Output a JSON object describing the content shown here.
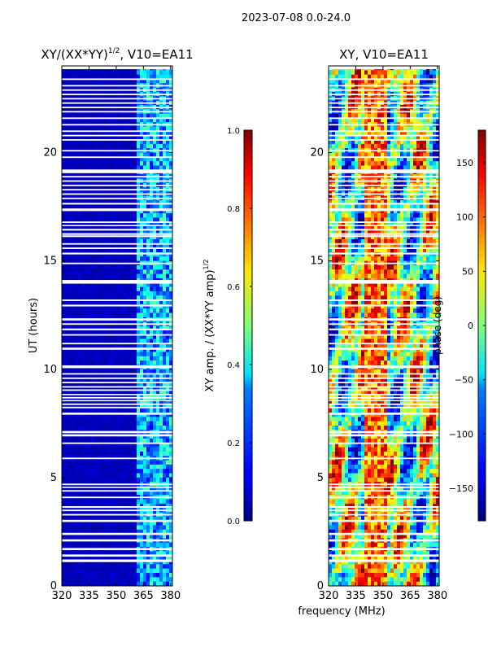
{
  "figure": {
    "suptitle": "2023-07-08 0.0-24.0",
    "shared_xlabel": "frequency (MHz)"
  },
  "chart_data": [
    {
      "type": "heatmap",
      "title_main": "XY/(XX*YY)",
      "title_sup": "1/2",
      "title_rest": ", V10=EA11",
      "xlabel": "",
      "ylabel": "UT (hours)",
      "xlim": [
        320,
        381
      ],
      "ylim": [
        0,
        24
      ],
      "xticks": [
        320,
        335,
        350,
        365,
        380
      ],
      "yticks": [
        0,
        5,
        10,
        15,
        20
      ],
      "colormap": "jet",
      "description": "XY amplitude normalised by sqrt(XX*YY amp); mostly near 0 below 362 MHz, values up to ~0.45 in the 362-381 MHz band",
      "colorbar": {
        "label_main": "XY amp. / (XX*YY amp)",
        "label_sup": "1/2",
        "range": [
          0.0,
          1.0
        ],
        "ticks": [
          "0.0",
          "0.2",
          "0.4",
          "0.6",
          "0.8",
          "1.0"
        ]
      }
    },
    {
      "type": "heatmap",
      "title": "XY, V10=EA11",
      "xlabel": "",
      "ylabel": "",
      "xlim": [
        320,
        381
      ],
      "ylim": [
        0,
        24
      ],
      "xticks": [
        320,
        335,
        350,
        365,
        380
      ],
      "yticks": [
        0,
        5,
        10,
        15,
        20
      ],
      "colormap": "jet",
      "description": "XY phase in degrees, widely varying across the full band",
      "colorbar": {
        "label": "phase (deg)",
        "range": [
          -180,
          180
        ],
        "ticks": [
          "−150",
          "−100",
          "−50",
          "0",
          "50",
          "100",
          "150"
        ]
      }
    }
  ],
  "flagged_time_ranges_ut_hours": [
    [
      1.1,
      1.22
    ],
    [
      1.35,
      1.45
    ],
    [
      1.65,
      1.75
    ],
    [
      2.05,
      2.15
    ],
    [
      2.35,
      2.45
    ],
    [
      2.95,
      3.05
    ],
    [
      3.25,
      3.32
    ],
    [
      3.45,
      3.52
    ],
    [
      3.6,
      3.68
    ],
    [
      4.05,
      4.12
    ],
    [
      4.35,
      4.42
    ],
    [
      4.52,
      4.58
    ],
    [
      4.65,
      4.72
    ],
    [
      5.85,
      5.92
    ],
    [
      6.55,
      6.62
    ],
    [
      6.9,
      7.0
    ],
    [
      7.05,
      7.15
    ],
    [
      7.9,
      8.0
    ],
    [
      8.2,
      8.27
    ],
    [
      8.35,
      8.42
    ],
    [
      8.52,
      8.58
    ],
    [
      8.65,
      8.72
    ],
    [
      8.8,
      8.86
    ],
    [
      9.0,
      9.07
    ],
    [
      9.15,
      9.22
    ],
    [
      9.35,
      9.42
    ],
    [
      9.55,
      9.62
    ],
    [
      9.75,
      9.82
    ],
    [
      10.05,
      10.18
    ],
    [
      10.9,
      11.0
    ],
    [
      11.15,
      11.22
    ],
    [
      11.55,
      11.62
    ],
    [
      11.8,
      11.88
    ],
    [
      12.05,
      12.12
    ],
    [
      12.25,
      12.35
    ],
    [
      12.9,
      12.98
    ],
    [
      13.15,
      13.22
    ],
    [
      13.95,
      14.12
    ],
    [
      14.85,
      14.92
    ],
    [
      15.3,
      15.38
    ],
    [
      15.55,
      15.62
    ],
    [
      15.75,
      15.82
    ],
    [
      16.1,
      16.18
    ],
    [
      16.2,
      16.28
    ],
    [
      16.4,
      16.48
    ],
    [
      16.6,
      16.66
    ],
    [
      16.75,
      16.82
    ],
    [
      17.3,
      17.42
    ],
    [
      17.6,
      17.68
    ],
    [
      17.85,
      17.92
    ],
    [
      18.05,
      18.12
    ],
    [
      18.25,
      18.32
    ],
    [
      18.45,
      18.52
    ],
    [
      18.65,
      18.72
    ],
    [
      18.85,
      18.92
    ],
    [
      19.05,
      19.22
    ],
    [
      19.75,
      19.82
    ],
    [
      20.05,
      20.12
    ],
    [
      20.55,
      20.62
    ],
    [
      20.75,
      20.82
    ],
    [
      20.95,
      21.02
    ],
    [
      21.25,
      21.32
    ],
    [
      21.55,
      21.62
    ],
    [
      21.85,
      21.92
    ],
    [
      22.05,
      22.12
    ],
    [
      22.25,
      22.32
    ],
    [
      22.45,
      22.52
    ],
    [
      22.65,
      22.72
    ],
    [
      22.85,
      22.92
    ],
    [
      23.05,
      23.12
    ],
    [
      23.35,
      23.42
    ],
    [
      23.85,
      24.0
    ]
  ]
}
